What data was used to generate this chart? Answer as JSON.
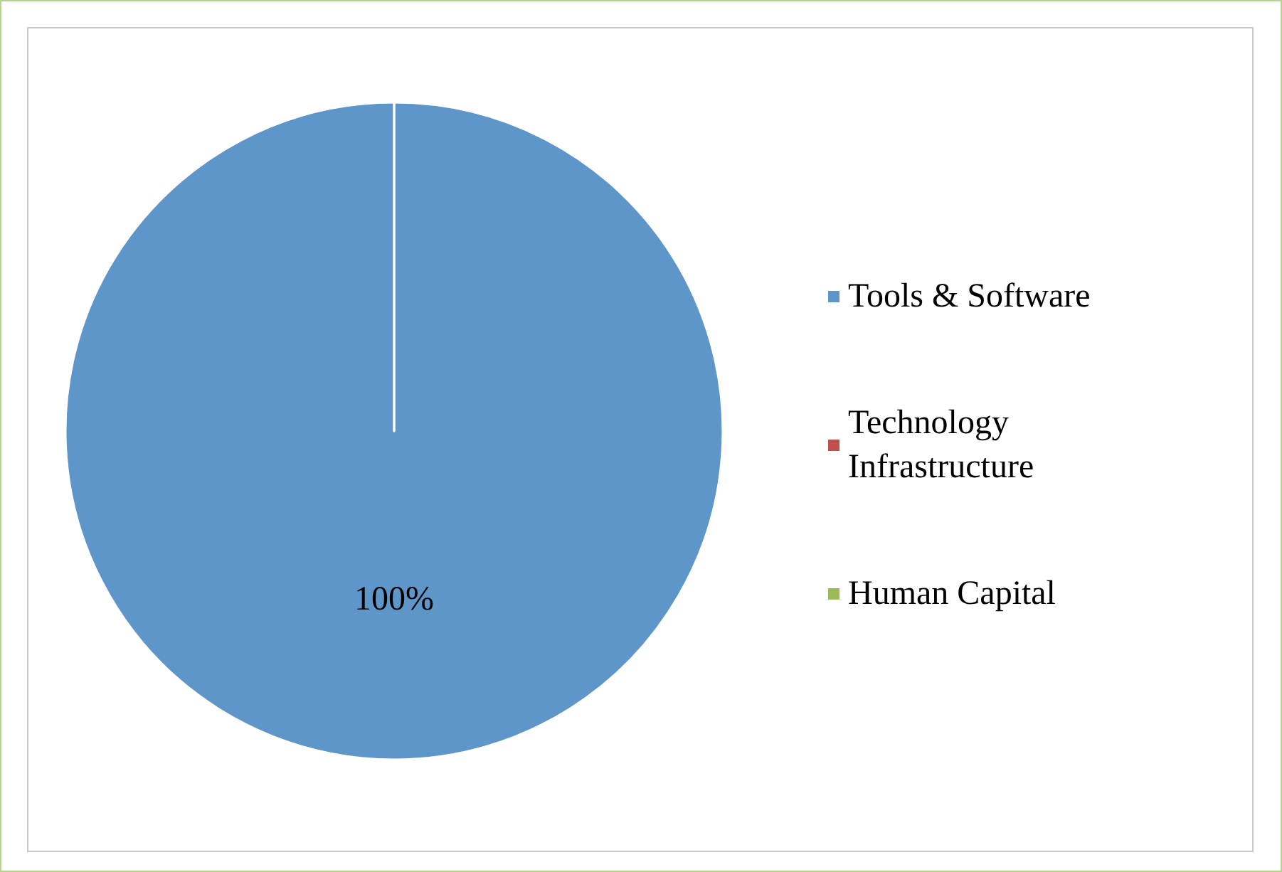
{
  "chart_data": {
    "type": "pie",
    "categories": [
      "Tools & Software",
      "Technology Infrastructure",
      "Human Capital"
    ],
    "values": [
      100,
      0,
      0
    ],
    "colors": [
      "#5f96c9",
      "#c0504d",
      "#9bbb59"
    ],
    "value_labels": [
      "100%",
      null,
      null
    ],
    "legend": "right"
  }
}
